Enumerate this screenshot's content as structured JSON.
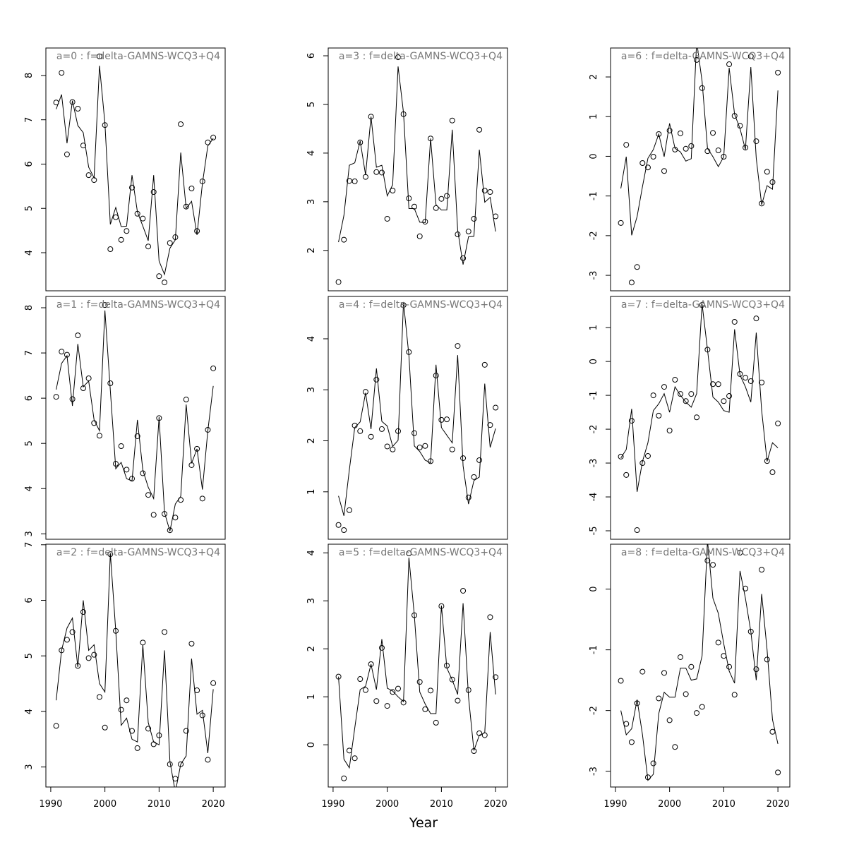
{
  "xlabel": "Year",
  "chart_data": [
    {
      "type": "line",
      "title": "a=0  :  f=delta-GAMNS-WCQ3+Q4",
      "x": [
        1991,
        1992,
        1993,
        1994,
        1995,
        1996,
        1997,
        1998,
        1999,
        2000,
        2001,
        2002,
        2003,
        2004,
        2005,
        2006,
        2007,
        2008,
        2009,
        2010,
        2011,
        2012,
        2013,
        2014,
        2015,
        2016,
        2017,
        2018,
        2019,
        2020
      ],
      "xlim": [
        1989.1,
        2022.2
      ],
      "ylim": [
        3.14,
        8.62
      ],
      "yticks": [
        4,
        5,
        6,
        7,
        8
      ],
      "series": [
        {
          "style": "points",
          "color": "#000000",
          "values": [
            7.39,
            8.06,
            6.22,
            7.4,
            7.25,
            6.42,
            5.75,
            5.64,
            8.43,
            6.88,
            4.08,
            4.8,
            4.29,
            4.49,
            5.47,
            4.88,
            4.77,
            4.14,
            5.37,
            3.47,
            3.33,
            4.22,
            4.35,
            6.9,
            5.04,
            5.45,
            4.49,
            5.61,
            6.49,
            6.6
          ]
        },
        {
          "style": "line",
          "color": "#000000",
          "values": [
            7.24,
            7.57,
            6.47,
            7.43,
            6.87,
            6.71,
            5.93,
            5.69,
            8.22,
            6.92,
            4.64,
            5.02,
            4.59,
            4.6,
            5.75,
            4.92,
            4.6,
            4.27,
            5.75,
            3.81,
            3.51,
            4.1,
            4.29,
            6.26,
            5.0,
            5.16,
            4.4,
            5.56,
            6.41,
            6.58
          ]
        }
      ]
    },
    {
      "type": "line",
      "title": "a=1  :  f=delta-GAMNS-WCQ3+Q4",
      "x": [
        1991,
        1992,
        1993,
        1994,
        1995,
        1996,
        1997,
        1998,
        1999,
        2000,
        2001,
        2002,
        2003,
        2004,
        2005,
        2006,
        2007,
        2008,
        2009,
        2010,
        2011,
        2012,
        2013,
        2014,
        2015,
        2016,
        2017,
        2018,
        2019,
        2020
      ],
      "xlim": [
        1989.1,
        2022.2
      ],
      "ylim": [
        2.88,
        8.25
      ],
      "yticks": [
        3,
        4,
        5,
        6,
        7,
        8
      ],
      "series": [
        {
          "style": "points",
          "color": "#000000",
          "values": [
            6.03,
            7.03,
            6.96,
            5.98,
            7.39,
            6.22,
            6.44,
            5.45,
            5.17,
            8.06,
            6.33,
            4.55,
            4.94,
            4.42,
            4.22,
            5.16,
            4.34,
            3.86,
            3.42,
            5.56,
            3.44,
            3.08,
            3.36,
            3.75,
            5.97,
            4.52,
            4.88,
            3.78,
            5.3,
            6.66
          ]
        },
        {
          "style": "line",
          "color": "#000000",
          "values": [
            6.19,
            6.77,
            6.94,
            5.83,
            7.2,
            6.25,
            6.38,
            5.52,
            5.28,
            7.94,
            6.17,
            4.44,
            4.58,
            4.22,
            4.17,
            5.52,
            4.41,
            4.03,
            3.78,
            5.58,
            3.47,
            3.06,
            3.66,
            3.83,
            5.86,
            4.56,
            4.88,
            3.98,
            5.28,
            6.27
          ]
        }
      ]
    },
    {
      "type": "line",
      "title": "a=2  :  f=delta-GAMNS-WCQ3+Q4",
      "x": [
        1991,
        1992,
        1993,
        1994,
        1995,
        1996,
        1997,
        1998,
        1999,
        2000,
        2001,
        2002,
        2003,
        2004,
        2005,
        2006,
        2007,
        2008,
        2009,
        2010,
        2011,
        2012,
        2013,
        2014,
        2015,
        2016,
        2017,
        2018,
        2019,
        2020
      ],
      "xlim": [
        1989.1,
        2022.2
      ],
      "ylim": [
        2.64,
        7.01
      ],
      "yticks": [
        3,
        4,
        5,
        6,
        7
      ],
      "xticks": [
        1990,
        2000,
        2010,
        2020
      ],
      "series": [
        {
          "style": "points",
          "color": "#000000",
          "values": [
            3.74,
            5.1,
            5.29,
            5.43,
            4.82,
            5.79,
            4.96,
            5.02,
            4.26,
            3.71,
            6.83,
            5.45,
            4.03,
            4.2,
            3.65,
            3.34,
            5.24,
            3.69,
            3.41,
            3.57,
            5.43,
            3.05,
            2.79,
            3.05,
            3.65,
            5.22,
            4.38,
            3.93,
            3.13,
            4.51
          ]
        },
        {
          "style": "line",
          "color": "#000000",
          "values": [
            4.2,
            5.1,
            5.5,
            5.68,
            4.8,
            6.0,
            5.1,
            5.2,
            4.5,
            4.35,
            6.85,
            5.45,
            3.75,
            3.88,
            3.5,
            3.45,
            5.2,
            3.8,
            3.45,
            3.4,
            5.1,
            3.1,
            2.55,
            3.05,
            3.2,
            4.95,
            3.95,
            4.02,
            3.25,
            4.4
          ]
        }
      ]
    },
    {
      "type": "line",
      "title": "a=3  :  f=delta-GAMNS-WCQ3+Q4",
      "x": [
        1991,
        1992,
        1993,
        1994,
        1995,
        1996,
        1997,
        1998,
        1999,
        2000,
        2001,
        2002,
        2003,
        2004,
        2005,
        2006,
        2007,
        2008,
        2009,
        2010,
        2011,
        2012,
        2013,
        2014,
        2015,
        2016,
        2017,
        2018,
        2019,
        2020
      ],
      "xlim": [
        1989.1,
        2022.2
      ],
      "ylim": [
        1.17,
        6.16
      ],
      "yticks": [
        2,
        3,
        4,
        5,
        6
      ],
      "series": [
        {
          "style": "points",
          "color": "#000000",
          "values": [
            1.35,
            2.22,
            3.43,
            3.42,
            4.22,
            3.51,
            4.75,
            3.61,
            3.6,
            2.65,
            3.23,
            5.97,
            4.8,
            3.07,
            2.9,
            2.29,
            2.59,
            4.3,
            2.87,
            3.06,
            3.12,
            4.67,
            2.33,
            1.84,
            2.39,
            2.65,
            4.48,
            3.23,
            3.2,
            2.7
          ]
        },
        {
          "style": "line",
          "color": "#000000",
          "values": [
            2.17,
            2.72,
            3.75,
            3.8,
            4.25,
            3.55,
            4.75,
            3.71,
            3.75,
            3.12,
            3.35,
            5.78,
            4.83,
            2.86,
            2.86,
            2.58,
            2.57,
            4.3,
            2.94,
            2.83,
            2.83,
            4.48,
            2.42,
            1.71,
            2.28,
            2.29,
            4.07,
            2.99,
            3.09,
            2.39
          ]
        }
      ]
    },
    {
      "type": "line",
      "title": "a=4  :  f=delta-GAMNS-WCQ3+Q4",
      "x": [
        1991,
        1992,
        1993,
        1994,
        1995,
        1996,
        1997,
        1998,
        1999,
        2000,
        2001,
        2002,
        2003,
        2004,
        2005,
        2006,
        2007,
        2008,
        2009,
        2010,
        2011,
        2012,
        2013,
        2014,
        2015,
        2016,
        2017,
        2018,
        2019,
        2020
      ],
      "xlim": [
        1989.1,
        2022.2
      ],
      "ylim": [
        0.07,
        4.83
      ],
      "yticks": [
        1,
        2,
        3,
        4
      ],
      "series": [
        {
          "style": "points",
          "color": "#000000",
          "values": [
            0.35,
            0.25,
            0.64,
            2.3,
            2.19,
            2.96,
            2.08,
            3.2,
            2.23,
            1.89,
            1.83,
            2.19,
            4.66,
            3.74,
            2.15,
            1.87,
            1.9,
            1.6,
            3.28,
            2.41,
            2.42,
            1.83,
            3.86,
            1.66,
            0.89,
            1.29,
            1.62,
            3.49,
            2.31,
            2.65
          ]
        },
        {
          "style": "line",
          "color": "#000000",
          "values": [
            0.92,
            0.53,
            1.43,
            2.26,
            2.37,
            2.94,
            2.23,
            3.42,
            2.38,
            2.29,
            1.89,
            2.01,
            4.72,
            3.67,
            1.9,
            1.79,
            1.62,
            1.57,
            3.49,
            2.26,
            2.11,
            1.96,
            3.68,
            1.51,
            0.76,
            1.22,
            1.29,
            3.12,
            1.87,
            2.24
          ]
        }
      ]
    },
    {
      "type": "line",
      "title": "a=5  :  f=delta-GAMNS-WCQ3+Q4",
      "x": [
        1991,
        1992,
        1993,
        1994,
        1995,
        1996,
        1997,
        1998,
        1999,
        2000,
        2001,
        2002,
        2003,
        2004,
        2005,
        2006,
        2007,
        2008,
        2009,
        2010,
        2011,
        2012,
        2013,
        2014,
        2015,
        2016,
        2017,
        2018,
        2019,
        2020
      ],
      "xlim": [
        1989.1,
        2022.2
      ],
      "ylim": [
        -0.88,
        4.18
      ],
      "yticks": [
        0,
        1,
        2,
        3,
        4
      ],
      "xticks": [
        1990,
        2000,
        2010,
        2020
      ],
      "series": [
        {
          "style": "points",
          "color": "#000000",
          "values": [
            1.42,
            -0.7,
            -0.12,
            -0.28,
            1.37,
            1.14,
            1.68,
            0.91,
            2.02,
            0.81,
            1.1,
            1.17,
            0.88,
            3.99,
            2.7,
            1.31,
            0.74,
            1.13,
            0.46,
            2.89,
            1.65,
            1.36,
            0.92,
            3.21,
            1.14,
            -0.13,
            0.24,
            0.2,
            2.66,
            1.41
          ]
        },
        {
          "style": "line",
          "color": "#000000",
          "values": [
            1.42,
            -0.3,
            -0.48,
            0.35,
            1.15,
            1.22,
            1.68,
            1.15,
            2.2,
            1.18,
            1.12,
            1.0,
            0.9,
            3.9,
            2.7,
            1.1,
            0.85,
            0.65,
            0.65,
            2.9,
            1.6,
            1.35,
            1.05,
            2.95,
            1.0,
            -0.12,
            0.2,
            0.25,
            2.35,
            1.05
          ]
        }
      ]
    },
    {
      "type": "line",
      "title": "a=6  :  f=delta-GAMNS-WCQ3+Q4",
      "x": [
        1991,
        1992,
        1993,
        1994,
        1995,
        1996,
        1997,
        1998,
        1999,
        2000,
        2001,
        2002,
        2003,
        2004,
        2005,
        2006,
        2007,
        2008,
        2009,
        2010,
        2011,
        2012,
        2013,
        2014,
        2015,
        2016,
        2017,
        2018,
        2019,
        2020
      ],
      "xlim": [
        1989.1,
        2022.2
      ],
      "ylim": [
        -3.39,
        2.73
      ],
      "yticks": [
        -3,
        -2,
        -1,
        0,
        1,
        2
      ],
      "series": [
        {
          "style": "points",
          "color": "#000000",
          "values": [
            -1.68,
            0.29,
            -3.18,
            -2.79,
            -0.17,
            -0.28,
            -0.01,
            0.56,
            -0.37,
            0.65,
            0.17,
            0.58,
            0.19,
            0.26,
            2.43,
            1.72,
            0.13,
            0.59,
            0.15,
            -0.01,
            2.32,
            1.02,
            0.77,
            0.22,
            2.52,
            0.38,
            -1.19,
            -0.39,
            -0.65,
            2.11
          ]
        },
        {
          "style": "line",
          "color": "#000000",
          "values": [
            -0.81,
            -0.01,
            -1.99,
            -1.52,
            -0.76,
            -0.05,
            0.17,
            0.56,
            -0.01,
            0.83,
            0.2,
            0.11,
            -0.12,
            -0.06,
            2.9,
            1.89,
            0.2,
            -0.01,
            -0.26,
            -0.01,
            2.23,
            1.06,
            0.7,
            0.17,
            2.25,
            -0.05,
            -1.22,
            -0.74,
            -0.83,
            1.66
          ]
        }
      ]
    },
    {
      "type": "line",
      "title": "a=7  :  f=delta-GAMNS-WCQ3+Q4",
      "x": [
        1991,
        1992,
        1993,
        1994,
        1995,
        1996,
        1997,
        1998,
        1999,
        2000,
        2001,
        2002,
        2003,
        2004,
        2005,
        2006,
        2007,
        2008,
        2009,
        2010,
        2011,
        2012,
        2013,
        2014,
        2015,
        2016,
        2017,
        2018,
        2019,
        2020
      ],
      "xlim": [
        1989.1,
        2022.2
      ],
      "ylim": [
        -5.25,
        1.92
      ],
      "yticks": [
        -5,
        -4,
        -3,
        -2,
        -1,
        0,
        1
      ],
      "series": [
        {
          "style": "points",
          "color": "#000000",
          "values": [
            -2.81,
            -3.35,
            -1.75,
            -4.98,
            -3.0,
            -2.79,
            -1.0,
            -1.6,
            -0.75,
            -2.04,
            -0.54,
            -0.96,
            -1.17,
            -0.96,
            -1.65,
            1.67,
            0.35,
            -0.67,
            -0.67,
            -1.17,
            -1.02,
            1.17,
            -0.37,
            -0.48,
            -0.58,
            1.27,
            -0.62,
            -2.94,
            -3.27,
            -1.83
          ]
        },
        {
          "style": "line",
          "color": "#000000",
          "values": [
            -2.85,
            -2.6,
            -1.4,
            -3.85,
            -2.95,
            -2.4,
            -1.45,
            -1.25,
            -0.95,
            -1.5,
            -0.75,
            -1.0,
            -1.2,
            -1.35,
            -0.95,
            1.7,
            0.35,
            -1.05,
            -1.2,
            -1.45,
            -1.5,
            0.95,
            -0.4,
            -0.75,
            -1.2,
            0.85,
            -1.45,
            -2.95,
            -2.4,
            -2.55
          ]
        }
      ]
    },
    {
      "type": "line",
      "title": "a=8  :  f=delta-GAMNS-WCQ3+Q4",
      "x": [
        1991,
        1992,
        1993,
        1994,
        1995,
        1996,
        1997,
        1998,
        1999,
        2000,
        2001,
        2002,
        2003,
        2004,
        2005,
        2006,
        2007,
        2008,
        2009,
        2010,
        2011,
        2012,
        2013,
        2014,
        2015,
        2016,
        2017,
        2018,
        2019,
        2020
      ],
      "xlim": [
        1989.1,
        2022.2
      ],
      "ylim": [
        -3.26,
        0.74
      ],
      "yticks": [
        -3,
        -2,
        -1,
        0
      ],
      "xticks": [
        1990,
        2000,
        2010,
        2020
      ],
      "series": [
        {
          "style": "points",
          "color": "#000000",
          "values": [
            -1.51,
            -2.22,
            -2.52,
            -1.88,
            -1.36,
            -3.1,
            -2.87,
            -1.8,
            -1.38,
            -2.16,
            -2.6,
            -1.12,
            -1.73,
            -1.28,
            -2.04,
            -1.94,
            0.47,
            0.4,
            -0.88,
            -1.1,
            -1.28,
            -1.74,
            0.6,
            0.01,
            -0.7,
            -1.32,
            0.32,
            -1.16,
            -2.35,
            -3.02
          ]
        },
        {
          "style": "line",
          "color": "#000000",
          "values": [
            -2.0,
            -2.4,
            -2.3,
            -1.82,
            -2.4,
            -3.15,
            -3.05,
            -2.05,
            -1.7,
            -1.78,
            -1.78,
            -1.3,
            -1.3,
            -1.5,
            -1.48,
            -1.1,
            0.8,
            -0.15,
            -0.4,
            -0.9,
            -1.35,
            -1.55,
            0.3,
            -0.15,
            -0.7,
            -1.5,
            -0.08,
            -1.0,
            -2.15,
            -2.55
          ]
        }
      ]
    }
  ]
}
